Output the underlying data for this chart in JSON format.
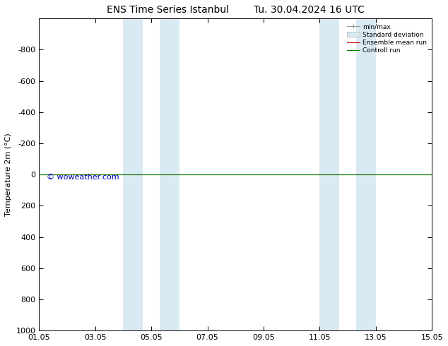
{
  "title_left": "ENS Time Series Istanbul",
  "title_right": "Tu. 30.04.2024 16 UTC",
  "ylabel": "Temperature 2m (°C)",
  "ylim_top": -1000,
  "ylim_bottom": 1000,
  "yticks": [
    -800,
    -600,
    -400,
    -200,
    0,
    200,
    400,
    600,
    800,
    1000
  ],
  "xtick_labels": [
    "01.05",
    "03.05",
    "05.05",
    "07.05",
    "09.05",
    "11.05",
    "13.05",
    "15.05"
  ],
  "xtick_positions": [
    0,
    2,
    4,
    6,
    8,
    10,
    12,
    14
  ],
  "xlim": [
    0,
    14
  ],
  "blue_bands": [
    [
      3.0,
      3.7
    ],
    [
      4.3,
      5.0
    ],
    [
      10.0,
      10.7
    ],
    [
      11.3,
      12.0
    ]
  ],
  "blue_band_color": "#daeaf5",
  "control_run_y": 0,
  "control_run_color": "#008000",
  "ensemble_mean_color": "#cc0000",
  "watermark_text": "© woweather.com",
  "watermark_color": "#0000bb",
  "bg_color": "#ffffff",
  "plot_bg_color": "#ffffff",
  "title_fontsize": 10,
  "axis_fontsize": 8,
  "tick_fontsize": 8
}
